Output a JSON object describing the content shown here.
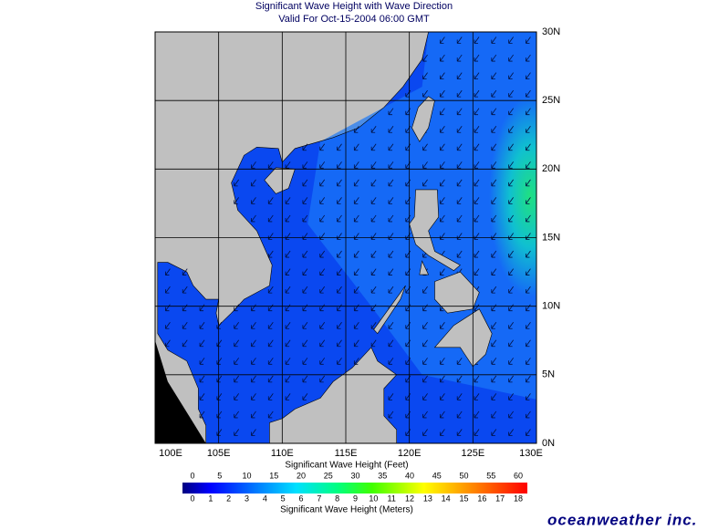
{
  "header": {
    "title": "Significant Wave Height with Wave Direction",
    "subtitle": "Valid For Oct-15-2004 06:00 GMT"
  },
  "map": {
    "lon_labels": [
      "100E",
      "105E",
      "110E",
      "115E",
      "120E",
      "125E",
      "130E"
    ],
    "lat_labels": [
      "0N",
      "5N",
      "10N",
      "15N",
      "20N",
      "25N",
      "30N"
    ]
  },
  "legend": {
    "feet_label": "Significant Wave Height (Feet)",
    "feet_ticks": [
      0,
      5,
      10,
      15,
      20,
      25,
      30,
      35,
      40,
      45,
      50,
      55,
      60
    ],
    "meter_ticks": [
      0,
      1,
      2,
      3,
      4,
      5,
      6,
      7,
      8,
      9,
      10,
      11,
      12,
      13,
      14,
      15,
      16,
      17,
      18
    ],
    "meter_label": "Significant Wave Height (Meters)"
  },
  "brand": "oceanweather inc."
}
